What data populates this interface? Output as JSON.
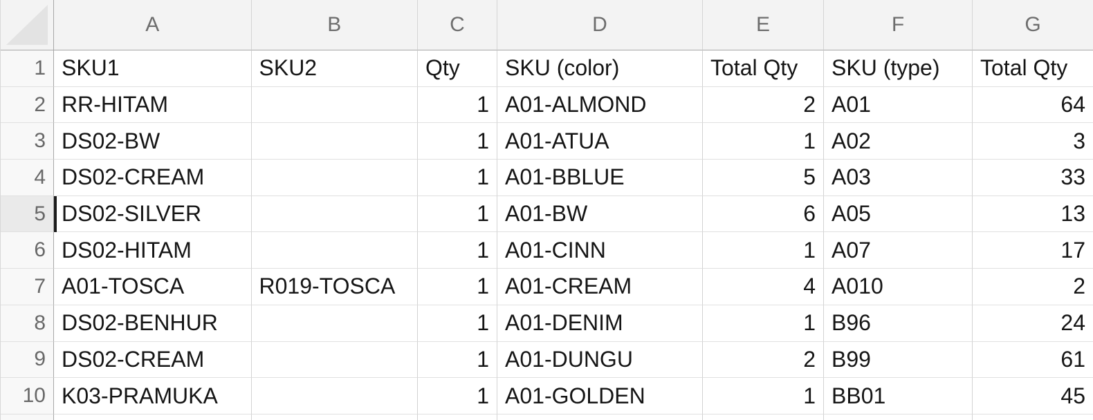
{
  "grid": {
    "column_letters": [
      "A",
      "B",
      "C",
      "D",
      "E",
      "F",
      "G"
    ],
    "row_numbers": [
      "1",
      "2",
      "3",
      "4",
      "5",
      "6",
      "7",
      "8",
      "9",
      "10"
    ],
    "active_row": "5"
  },
  "table": {
    "headers": [
      "SKU1",
      "SKU2",
      "Qty",
      "SKU (color)",
      "Total Qty",
      "SKU (type)",
      "Total Qty"
    ],
    "rows": [
      [
        "RR-HITAM",
        "",
        "1",
        "A01-ALMOND",
        "2",
        "A01",
        "64"
      ],
      [
        "DS02-BW",
        "",
        "1",
        "A01-ATUA",
        "1",
        "A02",
        "3"
      ],
      [
        "DS02-CREAM",
        "",
        "1",
        "A01-BBLUE",
        "5",
        "A03",
        "33"
      ],
      [
        "DS02-SILVER",
        "",
        "1",
        "A01-BW",
        "6",
        "A05",
        "13"
      ],
      [
        "DS02-HITAM",
        "",
        "1",
        "A01-CINN",
        "1",
        "A07",
        "17"
      ],
      [
        "A01-TOSCA",
        "R019-TOSCA",
        "1",
        "A01-CREAM",
        "4",
        "A010",
        "2"
      ],
      [
        "DS02-BENHUR",
        "",
        "1",
        "A01-DENIM",
        "1",
        "B96",
        "24"
      ],
      [
        "DS02-CREAM",
        "",
        "1",
        "A01-DUNGU",
        "2",
        "B99",
        "61"
      ],
      [
        "K03-PRAMUKA",
        "",
        "1",
        "A01-GOLDEN",
        "1",
        "BB01",
        "45"
      ]
    ],
    "numeric_columns": [
      2,
      4,
      6
    ]
  },
  "colors": {
    "header_bg": "#f3f3f3",
    "row_header_bg": "#f8f8f8",
    "active_row_header_bg": "#eaeaea",
    "header_text": "#6d6d6d",
    "cell_text": "#151515",
    "grid_line": "#d2d2d2",
    "header_divider": "#a6a6a6",
    "cursor": "#1b1b1b"
  }
}
